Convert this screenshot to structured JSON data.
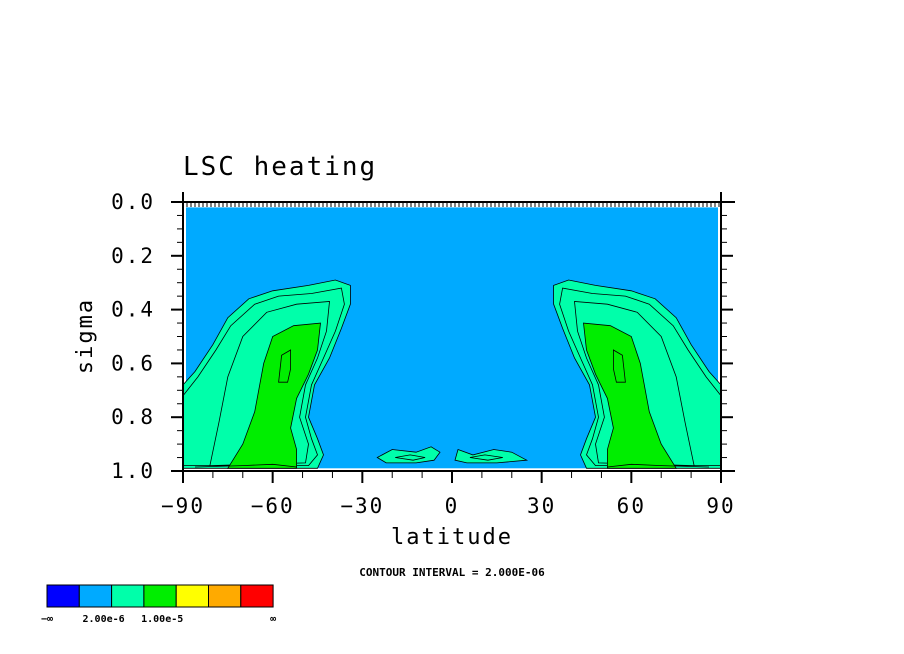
{
  "chart_data": {
    "type": "contour",
    "title": "LSC heating",
    "xlabel": "latitude",
    "ylabel": "sigma",
    "xlim": [
      -90,
      90
    ],
    "ylim": [
      0.0,
      1.0
    ],
    "y_inverted": true,
    "x_ticks": [
      "−90",
      "−60",
      "−30",
      "0",
      "30",
      "60",
      "90"
    ],
    "x_tick_values": [
      -90,
      -60,
      -30,
      0,
      30,
      60,
      90
    ],
    "y_ticks": [
      "0.0",
      "0.2",
      "0.4",
      "0.6",
      "0.8",
      "1.0"
    ],
    "y_tick_values": [
      0.0,
      0.2,
      0.4,
      0.6,
      0.8,
      1.0
    ],
    "contour_note": "CONTOUR INTERVAL = 2.000E-06",
    "colorbar": {
      "colors": [
        "#0000ff",
        "#00aaff",
        "#00ffaa",
        "#00ee00",
        "#ffff00",
        "#ffaa00",
        "#ff0000"
      ],
      "labels": [
        "−∞",
        "2.00e-6",
        "1.00e-5",
        "∞"
      ]
    },
    "regions": [
      {
        "name": "sh-band-1",
        "color": "#00ffaa",
        "points": [
          [
            -90,
            0.68
          ],
          [
            -86,
            0.63
          ],
          [
            -80,
            0.53
          ],
          [
            -75,
            0.43
          ],
          [
            -68,
            0.36
          ],
          [
            -60,
            0.33
          ],
          [
            -48,
            0.31
          ],
          [
            -39,
            0.29
          ],
          [
            -34,
            0.31
          ],
          [
            -34,
            0.38
          ],
          [
            -37,
            0.47
          ],
          [
            -41,
            0.58
          ],
          [
            -46,
            0.68
          ],
          [
            -48,
            0.8
          ],
          [
            -45,
            0.88
          ],
          [
            -43,
            0.94
          ],
          [
            -45,
            0.99
          ],
          [
            -90,
            0.99
          ]
        ]
      },
      {
        "name": "sh-band-2",
        "color": "#00ffaa",
        "points": [
          [
            -90,
            0.72
          ],
          [
            -85,
            0.65
          ],
          [
            -79,
            0.55
          ],
          [
            -74,
            0.46
          ],
          [
            -66,
            0.38
          ],
          [
            -58,
            0.35
          ],
          [
            -47,
            0.34
          ],
          [
            -37,
            0.32
          ],
          [
            -36,
            0.38
          ],
          [
            -39,
            0.48
          ],
          [
            -43,
            0.58
          ],
          [
            -47,
            0.68
          ],
          [
            -49,
            0.8
          ],
          [
            -47,
            0.88
          ],
          [
            -45,
            0.94
          ],
          [
            -48,
            0.98
          ],
          [
            -90,
            0.98
          ]
        ]
      },
      {
        "name": "sh-band-3",
        "color": "#00ffaa",
        "points": [
          [
            -81,
            0.98
          ],
          [
            -78,
            0.82
          ],
          [
            -75,
            0.65
          ],
          [
            -70,
            0.5
          ],
          [
            -62,
            0.41
          ],
          [
            -52,
            0.38
          ],
          [
            -41,
            0.37
          ],
          [
            -42,
            0.48
          ],
          [
            -45,
            0.58
          ],
          [
            -49,
            0.68
          ],
          [
            -51,
            0.8
          ],
          [
            -48,
            0.9
          ],
          [
            -49,
            0.97
          ]
        ]
      },
      {
        "name": "sh-green",
        "color": "#00ee00",
        "points": [
          [
            -75,
            0.99
          ],
          [
            -70,
            0.9
          ],
          [
            -66,
            0.78
          ],
          [
            -63,
            0.6
          ],
          [
            -60,
            0.5
          ],
          [
            -53,
            0.46
          ],
          [
            -44,
            0.45
          ],
          [
            -45,
            0.55
          ],
          [
            -48,
            0.64
          ],
          [
            -52,
            0.73
          ],
          [
            -54,
            0.84
          ],
          [
            -52,
            0.92
          ],
          [
            -52,
            0.99
          ]
        ]
      },
      {
        "name": "sh-inner",
        "color": "#00ee00",
        "points": [
          [
            -58,
            0.67
          ],
          [
            -57,
            0.57
          ],
          [
            -54,
            0.55
          ],
          [
            -54,
            0.62
          ],
          [
            -55,
            0.67
          ]
        ]
      },
      {
        "name": "nh-band-1",
        "color": "#00ffaa",
        "points": [
          [
            90,
            0.68
          ],
          [
            86,
            0.63
          ],
          [
            80,
            0.53
          ],
          [
            75,
            0.43
          ],
          [
            68,
            0.36
          ],
          [
            60,
            0.33
          ],
          [
            48,
            0.31
          ],
          [
            39,
            0.29
          ],
          [
            34,
            0.31
          ],
          [
            34,
            0.38
          ],
          [
            37,
            0.47
          ],
          [
            41,
            0.58
          ],
          [
            46,
            0.68
          ],
          [
            48,
            0.8
          ],
          [
            45,
            0.88
          ],
          [
            43,
            0.94
          ],
          [
            45,
            0.99
          ],
          [
            90,
            0.99
          ]
        ]
      },
      {
        "name": "nh-band-2",
        "color": "#00ffaa",
        "points": [
          [
            90,
            0.72
          ],
          [
            85,
            0.65
          ],
          [
            79,
            0.55
          ],
          [
            74,
            0.46
          ],
          [
            66,
            0.38
          ],
          [
            58,
            0.35
          ],
          [
            47,
            0.34
          ],
          [
            37,
            0.32
          ],
          [
            36,
            0.38
          ],
          [
            39,
            0.48
          ],
          [
            43,
            0.58
          ],
          [
            47,
            0.68
          ],
          [
            49,
            0.8
          ],
          [
            47,
            0.88
          ],
          [
            45,
            0.94
          ],
          [
            48,
            0.98
          ],
          [
            90,
            0.98
          ]
        ]
      },
      {
        "name": "nh-band-3",
        "color": "#00ffaa",
        "points": [
          [
            81,
            0.98
          ],
          [
            78,
            0.82
          ],
          [
            75,
            0.65
          ],
          [
            70,
            0.5
          ],
          [
            62,
            0.41
          ],
          [
            52,
            0.38
          ],
          [
            41,
            0.37
          ],
          [
            42,
            0.48
          ],
          [
            45,
            0.58
          ],
          [
            49,
            0.68
          ],
          [
            51,
            0.8
          ],
          [
            48,
            0.9
          ],
          [
            49,
            0.97
          ]
        ]
      },
      {
        "name": "nh-green",
        "color": "#00ee00",
        "points": [
          [
            75,
            0.99
          ],
          [
            70,
            0.9
          ],
          [
            66,
            0.78
          ],
          [
            63,
            0.6
          ],
          [
            60,
            0.5
          ],
          [
            53,
            0.46
          ],
          [
            44,
            0.45
          ],
          [
            45,
            0.55
          ],
          [
            48,
            0.64
          ],
          [
            52,
            0.73
          ],
          [
            54,
            0.84
          ],
          [
            52,
            0.92
          ],
          [
            52,
            0.99
          ]
        ]
      },
      {
        "name": "nh-inner",
        "color": "#00ee00",
        "points": [
          [
            58,
            0.67
          ],
          [
            57,
            0.57
          ],
          [
            54,
            0.55
          ],
          [
            54,
            0.62
          ],
          [
            55,
            0.67
          ]
        ]
      },
      {
        "name": "eq-blob-left",
        "color": "#00ffaa",
        "points": [
          [
            -25,
            0.95
          ],
          [
            -20,
            0.92
          ],
          [
            -12,
            0.93
          ],
          [
            -7,
            0.91
          ],
          [
            -4,
            0.93
          ],
          [
            -6,
            0.96
          ],
          [
            -12,
            0.97
          ],
          [
            -22,
            0.97
          ]
        ]
      },
      {
        "name": "eq-blob-right",
        "color": "#00ffaa",
        "points": [
          [
            2,
            0.92
          ],
          [
            7,
            0.94
          ],
          [
            14,
            0.92
          ],
          [
            20,
            0.93
          ],
          [
            25,
            0.96
          ],
          [
            15,
            0.97
          ],
          [
            5,
            0.97
          ],
          [
            1,
            0.96
          ]
        ]
      }
    ],
    "lines": [
      {
        "name": "eq-inner-left",
        "points": [
          [
            -19,
            0.95
          ],
          [
            -14,
            0.94
          ],
          [
            -9,
            0.95
          ],
          [
            -13,
            0.96
          ],
          [
            -19,
            0.95
          ]
        ]
      },
      {
        "name": "eq-inner-right",
        "points": [
          [
            6,
            0.95
          ],
          [
            11,
            0.94
          ],
          [
            17,
            0.95
          ],
          [
            12,
            0.96
          ],
          [
            6,
            0.95
          ]
        ]
      },
      {
        "name": "sh-surface",
        "points": [
          [
            -86,
            0.985
          ],
          [
            -70,
            0.98
          ],
          [
            -60,
            0.975
          ],
          [
            -52,
            0.985
          ]
        ]
      },
      {
        "name": "nh-surface",
        "points": [
          [
            86,
            0.985
          ],
          [
            70,
            0.98
          ],
          [
            60,
            0.975
          ],
          [
            52,
            0.985
          ]
        ]
      }
    ]
  }
}
